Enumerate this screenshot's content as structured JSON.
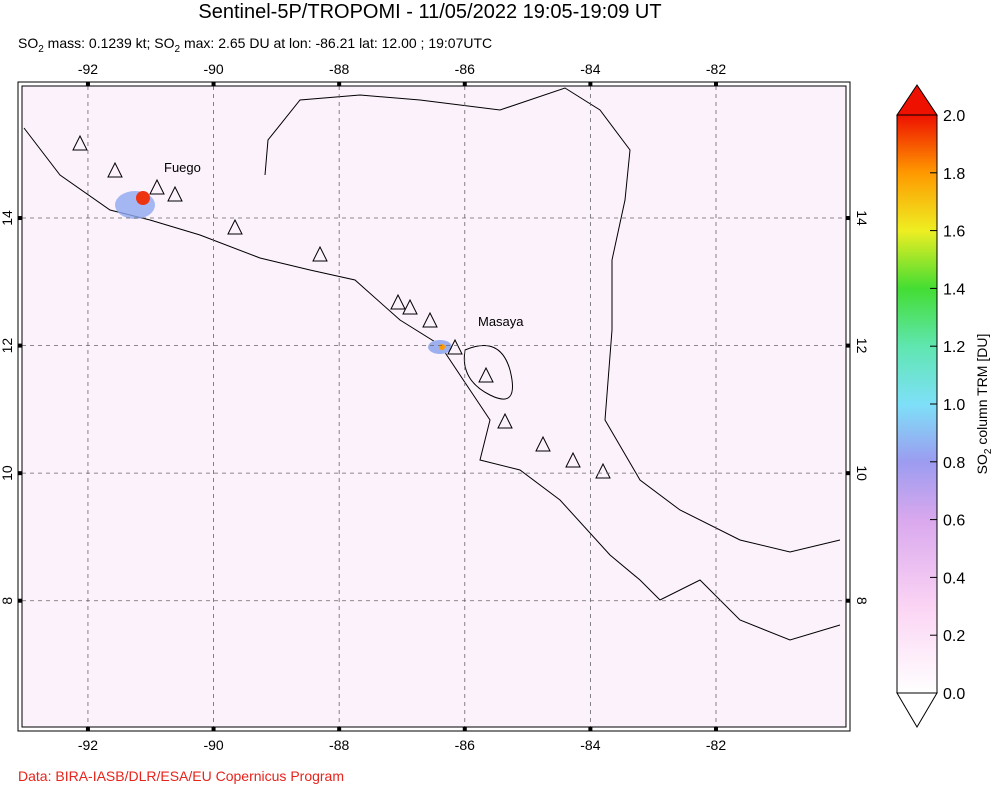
{
  "header": {
    "title": "Sentinel-5P/TROPOMI - 11/05/2022 19:05-19:09 UT",
    "subtitle_parts": [
      "SO",
      "2",
      " mass: 0.1239 kt; SO",
      "2",
      " max: 2.65 DU at lon: -86.21 lat: 12.00 ; 19:07UTC"
    ]
  },
  "map": {
    "xlim": [
      -93.05,
      -79.93
    ],
    "ylim": [
      6.02,
      16.07
    ],
    "xticks": [
      -92,
      -90,
      -88,
      -86,
      -84,
      -82
    ],
    "yticks": [
      8,
      10,
      12,
      14
    ],
    "grid": true,
    "labels": [
      "Fuego",
      "Masaya"
    ]
  },
  "colorbar": {
    "lim": [
      0,
      2
    ],
    "ticks": [
      {
        "value": 0,
        "label": "0.0"
      },
      {
        "value": 0.2,
        "label": "0.2"
      },
      {
        "value": 0.4,
        "label": "0.4"
      },
      {
        "value": 0.6,
        "label": "0.6"
      },
      {
        "value": 0.8,
        "label": "0.8"
      },
      {
        "value": 1,
        "label": "1.0"
      },
      {
        "value": 1.2,
        "label": "1.2"
      },
      {
        "value": 1.4,
        "label": "1.4"
      },
      {
        "value": 1.6,
        "label": "1.6"
      },
      {
        "value": 1.8,
        "label": "1.8"
      },
      {
        "value": 2,
        "label": "2.0"
      }
    ],
    "label_parts": [
      "SO",
      "2",
      " column TRM [DU]"
    ]
  },
  "footer": {
    "credit": "Data: BIRA-IASB/DLR/ESA/EU Copernicus Program"
  }
}
